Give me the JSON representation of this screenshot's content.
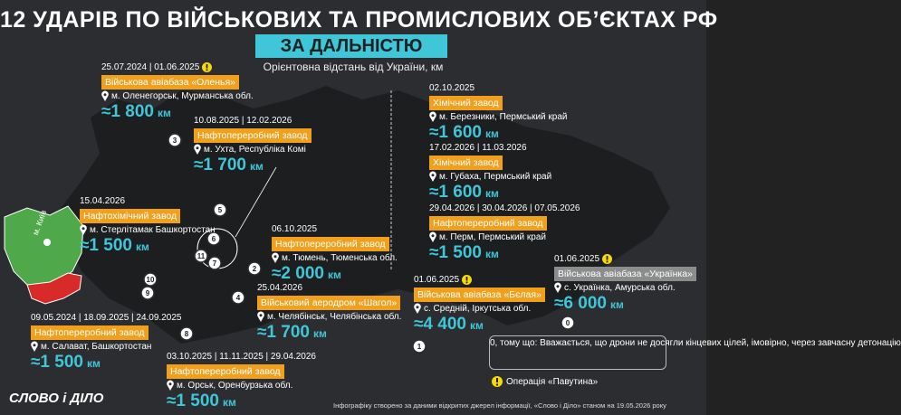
{
  "header": {
    "title": "12 УДАРІВ ПО ВІЙСЬКОВИХ ТА ПРОМИСЛОВИХ ОБ’ЄКТАХ РФ",
    "banner": "ЗА ДАЛЬНІСТЮ",
    "subtitle": "Орієнтовна відстань від України, км"
  },
  "entries": [
    {
      "dates": "25.07.2024 | 01.06.2025",
      "warning": true,
      "name": "Військова авіабаза «Оленья»",
      "tag_color": "#f0a01c",
      "location": "м. Оленегорськ, Мурманська обл.",
      "distance": "≈1 800",
      "unit": "км"
    },
    {
      "dates": "10.08.2025 | 12.02.2026",
      "warning": false,
      "name": "Нафтопереробний завод",
      "tag_color": "#f0a01c",
      "location": "м. Ухта, Республіка Комі",
      "distance": "≈1 700",
      "unit": "км"
    },
    {
      "dates": "15.04.2026",
      "warning": false,
      "name": "Нафтохімічний завод",
      "tag_color": "#f0a01c",
      "location": "м. Стерлітамак Башкортостан",
      "distance": "≈1 500",
      "unit": "км"
    },
    {
      "dates": "06.10.2025",
      "warning": false,
      "name": "Нафтопереробний завод",
      "tag_color": "#f0a01c",
      "location": "м. Тюмень, Тюменська обл.",
      "distance": "≈2 000",
      "unit": "км"
    },
    {
      "dates": "25.04.2026",
      "warning": false,
      "name": "Військовий аеродром «Шагол»",
      "tag_color": "#f0a01c",
      "location": "м. Челябінськ, Челябінська обл.",
      "distance": "≈1 700",
      "unit": "км"
    },
    {
      "dates": "09.05.2024 | 18.09.2025 | 24.09.2025",
      "warning": false,
      "name": "Нафтопереробний завод",
      "tag_color": "#f0a01c",
      "location": "м. Салават, Башкортостан",
      "distance": "≈1 500",
      "unit": "км"
    },
    {
      "dates": "03.10.2025 | 11.11.2025 | 29.04.2026",
      "warning": false,
      "name": "Нафтопереробний завод",
      "tag_color": "#f0a01c",
      "location": "м. Орськ, Оренбурзька обл.",
      "distance": "≈1 500",
      "unit": "км"
    },
    {
      "dates": "02.10.2025",
      "warning": false,
      "name": "Хімічний завод",
      "tag_color": "#f0a01c",
      "location": "м. Березники, Пермський край",
      "distance": "≈1 600",
      "unit": "км"
    },
    {
      "dates": "17.02.2026 | 11.03.2026",
      "warning": false,
      "name": "Хімічний завод",
      "tag_color": "#f0a01c",
      "location": "м. Губаха, Пермський край",
      "distance": "≈1 600",
      "unit": "км"
    },
    {
      "dates": "29.04.2026 | 30.04.2026 | 07.05.2026",
      "warning": false,
      "name": "Нафтопереробний завод",
      "tag_color": "#f0a01c",
      "location": "м. Перм, Пермський край",
      "distance": "≈1 500",
      "unit": "км"
    },
    {
      "dates": "01.06.2025",
      "warning": true,
      "name": "Військова авіабаза «Бєлая»",
      "tag_color": "#f0a01c",
      "location": "с. Средній, Іркутська обл.",
      "distance": "≈4 400",
      "unit": "км"
    },
    {
      "dates": "01.06.2025",
      "warning": true,
      "name": "Військова авіабаза «Українка»",
      "tag_color": "#8c8c8c",
      "location": "с. Українка, Амурська обл.",
      "distance": "≈6 000",
      "unit": "км"
    }
  ],
  "markers": [
    "3",
    "10",
    "9",
    "2",
    "4",
    "8",
    "6",
    "7",
    "11",
    "1",
    "0",
    "5"
  ],
  "map": {
    "kyiv": "м. Київ"
  },
  "legend": {
    "note": "0, тому що: Вважається, що дрони не досягли кінцевих цілей, імовірно, через завчасну детонацію",
    "operation": "Операція «Павутина»"
  },
  "footer": {
    "logo": "СЛОВО і ДІЛО",
    "source": "Інфографіку створено за даними відкритих джерел інформації, «Слово і Діло» станом на 19.05.2026 року"
  }
}
